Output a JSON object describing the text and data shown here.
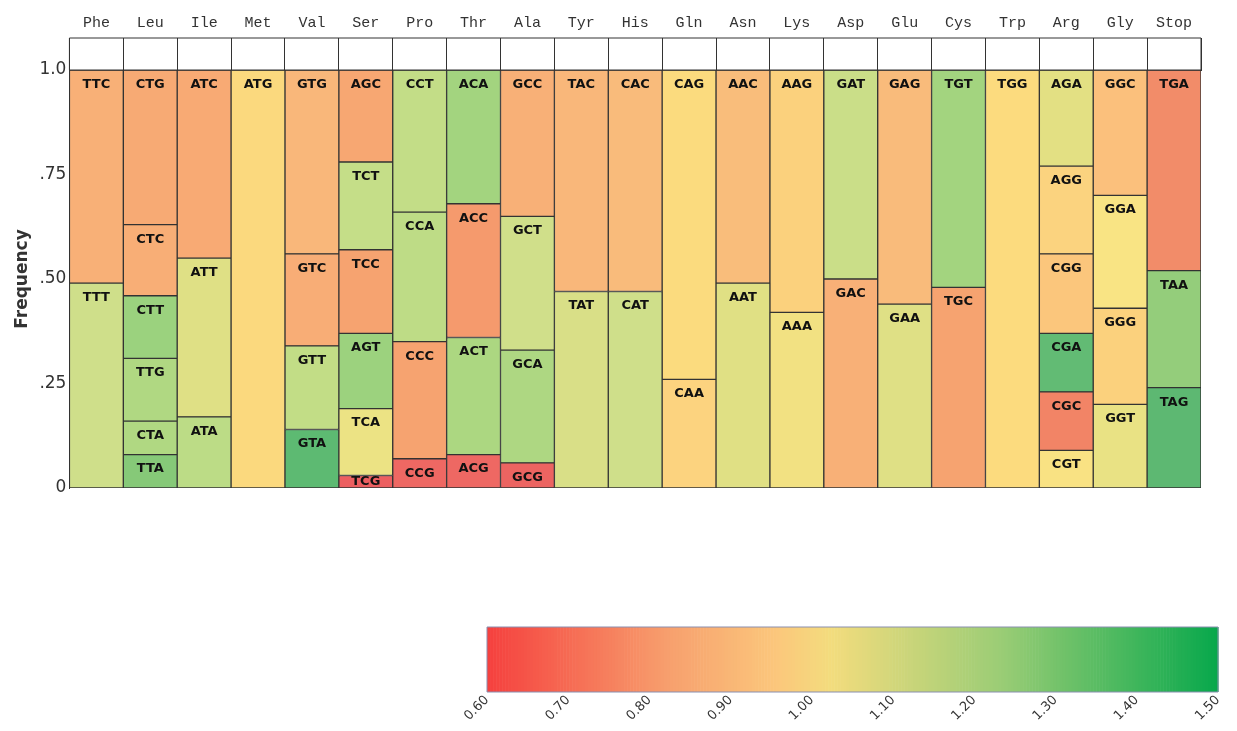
{
  "chart_data": {
    "type": "bar",
    "stacked": true,
    "ylabel": "Frequency",
    "legend": false,
    "grid": false,
    "categories": [
      "Phe",
      "Leu",
      "Ile",
      "Met",
      "Val",
      "Ser",
      "Pro",
      "Thr",
      "Ala",
      "Tyr",
      "His",
      "Gln",
      "Asn",
      "Lys",
      "Asp",
      "Glu",
      "Cys",
      "Trp",
      "Arg",
      "Gly",
      "Stop"
    ],
    "ylim": [
      0,
      1
    ],
    "yticks": [
      0,
      {
        "value": 0.25,
        "label": ".25"
      },
      {
        "value": 0.5,
        "label": ".50"
      },
      {
        "value": 0.75,
        "label": ".75"
      },
      {
        "value": 1,
        "label": "1.0"
      }
    ],
    "clim": [
      0.6,
      1.5
    ],
    "cticks": [
      {
        "value": 0.6,
        "label": "0.60"
      },
      {
        "value": 0.7,
        "label": "0.70"
      },
      {
        "value": 0.8,
        "label": "0.80"
      },
      {
        "value": 0.9,
        "label": "0.90"
      },
      {
        "value": 1,
        "label": "1.00"
      },
      {
        "value": 1.1,
        "label": "1.10"
      },
      {
        "value": 1.2,
        "label": "1.20"
      },
      {
        "value": 1.3,
        "label": "1.30"
      },
      {
        "value": 1.4,
        "label": "1.40"
      },
      {
        "value": 1.5,
        "label": "1.50"
      }
    ],
    "series": [
      {
        "values": [
          0.49,
          0.08,
          0.17,
          1,
          0.14,
          0.03,
          0.07,
          0.08,
          0.06,
          0.47,
          0.47,
          0.26,
          0.49,
          0.42,
          0.5,
          0.44,
          0.48,
          1,
          0.09,
          0.2,
          0.24
        ],
        "value_labels": [
          "TTT",
          "TTA",
          "ATA",
          "ATG",
          "GTA",
          "TCG",
          "CCG",
          "ACG",
          "GCG",
          "TAT",
          "CAT",
          "CAA",
          "AAT",
          "AAA",
          "GAC",
          "GAA",
          "TGC",
          "TGG",
          "CGT",
          "GGT",
          "TAG"
        ],
        "colors": [
          "#cfdf8a",
          "#86c978",
          "#bcdc86",
          "#fbd97e",
          "#5dba72",
          "#ec5f60",
          "#ee6863",
          "#ee6863",
          "#ec6461",
          "#d9df87",
          "#cfdf8a",
          "#fcd37f",
          "#e0e084",
          "#f2e182",
          "#f8b077",
          "#dfe085",
          "#f6a370",
          "#fcdb7e",
          "#f9e283",
          "#e9e284",
          "#5db872"
        ]
      },
      {
        "values": [
          0.51,
          0.08,
          0.38,
          null,
          0.2,
          0.16,
          0.28,
          0.28,
          0.27,
          0.53,
          0.53,
          0.74,
          0.51,
          0.58,
          0.5,
          0.56,
          0.52,
          null,
          0.14,
          0.23,
          0.28
        ],
        "value_labels": [
          "TTC",
          "CTA",
          "ATT",
          null,
          "GTT",
          "TCA",
          "CCC",
          "ACT",
          "GCA",
          "TAC",
          "CAC",
          "CAG",
          "AAC",
          "AAG",
          "GAT",
          "GAG",
          "TGT",
          null,
          "CGC",
          "GGG",
          "TAA"
        ],
        "colors": [
          "#f8b077",
          "#b0d882",
          "#dfe085",
          null,
          "#c2dd86",
          "#ece384",
          "#f6a370",
          "#acd781",
          "#aed782",
          "#f9b77a",
          "#f9bb7b",
          "#fbdb7e",
          "#f9bd7b",
          "#fbd17d",
          "#cade88",
          "#f9bb7b",
          "#a3d47f",
          null,
          "#f28466",
          "#fbd17d",
          "#94cd7b"
        ]
      },
      {
        "values": [
          null,
          0.15,
          0.45,
          null,
          0.22,
          0.18,
          0.31,
          0.32,
          0.32,
          null,
          null,
          null,
          null,
          null,
          null,
          null,
          null,
          null,
          0.14,
          0.27,
          0.48
        ],
        "value_labels": [
          null,
          "TTG",
          "ATC",
          null,
          "GTC",
          "AGT",
          "CCA",
          "ACC",
          "GCT",
          null,
          null,
          null,
          null,
          null,
          null,
          null,
          null,
          null,
          "CGA",
          "GGA",
          "TGA"
        ],
        "colors": [
          null,
          "#b0d882",
          "#f8aa74",
          null,
          "#f8ad76",
          "#9cd27e",
          "#bedc86",
          "#f59a6d",
          "#d0df8a",
          null,
          null,
          null,
          null,
          null,
          null,
          null,
          null,
          null,
          "#62bb74",
          "#f9e484",
          "#f28c69"
        ]
      },
      {
        "values": [
          null,
          0.15,
          null,
          null,
          0.44,
          0.2,
          0.34,
          0.32,
          0.35,
          null,
          null,
          null,
          null,
          null,
          null,
          null,
          null,
          null,
          0.19,
          0.3,
          null
        ],
        "value_labels": [
          null,
          "CTT",
          null,
          null,
          "GTG",
          "TCC",
          "CCT",
          "ACA",
          "GCC",
          null,
          null,
          null,
          null,
          null,
          null,
          null,
          null,
          null,
          "CGG",
          "GGC",
          null
        ],
        "colors": [
          null,
          "#9bd27e",
          null,
          null,
          "#f9b77a",
          "#f6a370",
          "#c3dd87",
          "#a3d47f",
          "#f8b077",
          null,
          null,
          null,
          null,
          null,
          null,
          null,
          null,
          null,
          "#fbc67c",
          "#fbc07c",
          null
        ]
      },
      {
        "values": [
          null,
          0.17,
          null,
          null,
          null,
          0.21,
          null,
          null,
          null,
          null,
          null,
          null,
          null,
          null,
          null,
          null,
          null,
          null,
          0.21,
          null,
          null
        ],
        "value_labels": [
          null,
          "CTC",
          null,
          null,
          null,
          "TCT",
          null,
          null,
          null,
          null,
          null,
          null,
          null,
          null,
          null,
          null,
          null,
          null,
          "AGG",
          null,
          null
        ],
        "colors": [
          null,
          "#f8ae76",
          null,
          null,
          null,
          "#c5de88",
          null,
          null,
          null,
          null,
          null,
          null,
          null,
          null,
          null,
          null,
          null,
          null,
          "#fbd37f",
          null,
          null
        ]
      },
      {
        "values": [
          null,
          0.37,
          null,
          null,
          null,
          0.22,
          null,
          null,
          null,
          null,
          null,
          null,
          null,
          null,
          null,
          null,
          null,
          null,
          0.23,
          null,
          null
        ],
        "value_labels": [
          null,
          "CTG",
          null,
          null,
          null,
          "AGC",
          null,
          null,
          null,
          null,
          null,
          null,
          null,
          null,
          null,
          null,
          null,
          null,
          "AGA",
          null,
          null
        ],
        "colors": [
          null,
          "#f7aa74",
          null,
          null,
          null,
          "#f7a772",
          null,
          null,
          null,
          null,
          null,
          null,
          null,
          null,
          null,
          null,
          null,
          null,
          "#e3e083",
          null,
          null
        ]
      }
    ]
  }
}
